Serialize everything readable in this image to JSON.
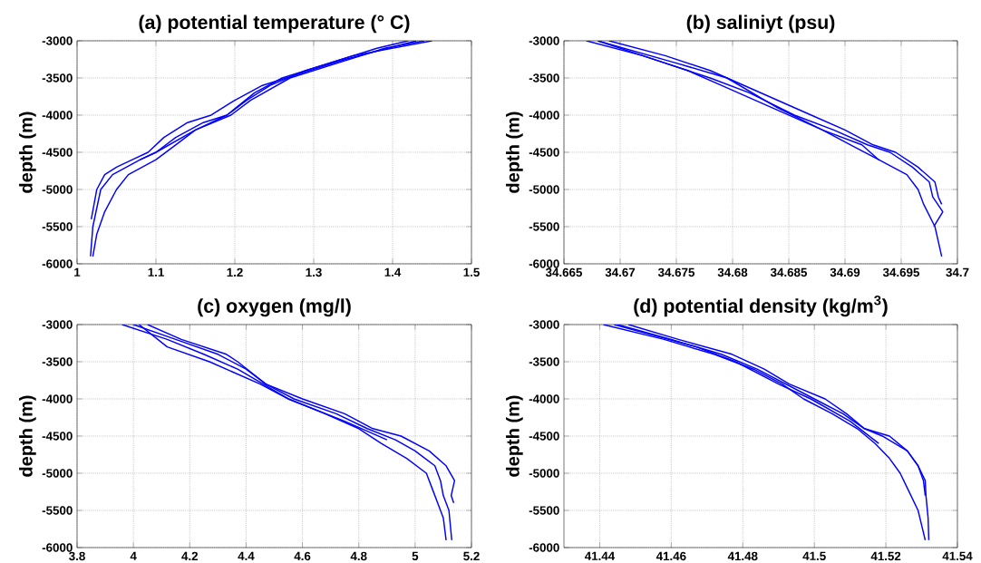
{
  "chart_data": [
    {
      "type": "line",
      "title": "(a) potential temperature (° C)",
      "ylabel": "depth (m)",
      "xlim": [
        1,
        1.5
      ],
      "ylim": [
        -6000,
        -3000
      ],
      "xticks": [
        1,
        1.1,
        1.2,
        1.3,
        1.4,
        1.5
      ],
      "yticks": [
        -6000,
        -5500,
        -5000,
        -4500,
        -4000,
        -3500,
        -3000
      ],
      "grid": true,
      "line_style": "solid",
      "series": [
        {
          "color": "#0000ff",
          "x": [
            1.02,
            1.025,
            1.035,
            1.05,
            1.065,
            1.1,
            1.125,
            1.15,
            1.19,
            1.215,
            1.245,
            1.29,
            1.35,
            1.45
          ],
          "values": [
            -5900,
            -5600,
            -5300,
            -5000,
            -4800,
            -4600,
            -4400,
            -4200,
            -4000,
            -3800,
            -3600,
            -3400,
            -3200,
            -3000
          ]
        },
        {
          "color": "#0000ff",
          "x": [
            1.017,
            1.02,
            1.03,
            1.045,
            1.08,
            1.1,
            1.125,
            1.16,
            1.19,
            1.225,
            1.26,
            1.32,
            1.38,
            1.42
          ],
          "values": [
            -5900,
            -5500,
            -5000,
            -4800,
            -4600,
            -4500,
            -4300,
            -4100,
            -4000,
            -3700,
            -3500,
            -3300,
            -3100,
            -3000
          ]
        },
        {
          "color": "#0000ff",
          "x": [
            1.018,
            1.025,
            1.035,
            1.05,
            1.07,
            1.09,
            1.11,
            1.14,
            1.17,
            1.2,
            1.235,
            1.28,
            1.34,
            1.43
          ],
          "values": [
            -5400,
            -5000,
            -4800,
            -4700,
            -4600,
            -4500,
            -4300,
            -4100,
            -4000,
            -3800,
            -3600,
            -3450,
            -3250,
            -3000
          ]
        },
        {
          "color": "#0000ff",
          "x": [
            1.08,
            1.1,
            1.15,
            1.195,
            1.22,
            1.27,
            1.33,
            1.39,
            1.44
          ],
          "values": [
            -4600,
            -4500,
            -4200,
            -4000,
            -3800,
            -3500,
            -3300,
            -3100,
            -3000
          ]
        }
      ]
    },
    {
      "type": "line",
      "title": "(b) saliniyt (psu)",
      "ylabel": "depth (m)",
      "xlim": [
        34.665,
        34.7
      ],
      "ylim": [
        -6000,
        -3000
      ],
      "xticks": [
        34.665,
        34.67,
        34.675,
        34.68,
        34.685,
        34.69,
        34.695,
        34.7
      ],
      "yticks": [
        -6000,
        -5500,
        -5000,
        -4500,
        -4000,
        -3500,
        -3000
      ],
      "grid": true,
      "line_style": "solid",
      "series": [
        {
          "color": "#0000ff",
          "x": [
            34.667,
            34.672,
            34.676,
            34.679,
            34.682,
            34.685,
            34.688,
            34.6905,
            34.693,
            34.6955,
            34.6965,
            34.697,
            34.698,
            34.6983,
            34.6986
          ],
          "values": [
            -3000,
            -3200,
            -3400,
            -3600,
            -3800,
            -4000,
            -4200,
            -4400,
            -4600,
            -4800,
            -5000,
            -5200,
            -5500,
            -5700,
            -5900
          ]
        },
        {
          "color": "#0000ff",
          "x": [
            34.668,
            34.674,
            34.678,
            34.6815,
            34.6855,
            34.689,
            34.692,
            34.694,
            34.696,
            34.6975,
            34.6978,
            34.6987,
            34.6979
          ],
          "values": [
            -3000,
            -3300,
            -3500,
            -3700,
            -4000,
            -4200,
            -4400,
            -4500,
            -4700,
            -4900,
            -5100,
            -5300,
            -5500
          ]
        },
        {
          "color": "#0000ff",
          "x": [
            34.669,
            34.674,
            34.678,
            34.681,
            34.684,
            34.687,
            34.69,
            34.6925,
            34.6945,
            34.6965,
            34.698,
            34.6983,
            34.6986
          ],
          "values": [
            -3000,
            -3200,
            -3400,
            -3600,
            -3800,
            -4000,
            -4200,
            -4400,
            -4500,
            -4700,
            -4900,
            -5100,
            -5200
          ]
        },
        {
          "color": "#0000ff",
          "x": [
            34.668,
            34.675,
            34.6795,
            34.684,
            34.688,
            34.6915,
            34.693
          ],
          "values": [
            -3000,
            -3300,
            -3500,
            -3900,
            -4200,
            -4400,
            -4600
          ]
        }
      ]
    },
    {
      "type": "line",
      "title": "(c) oxygen (mg/l)",
      "ylabel": "depth (m)",
      "xlim": [
        3.8,
        5.2
      ],
      "ylim": [
        -6000,
        -3000
      ],
      "xticks": [
        3.8,
        4,
        4.2,
        4.4,
        4.6,
        4.8,
        5,
        5.2
      ],
      "yticks": [
        -6000,
        -5500,
        -5000,
        -4500,
        -4000,
        -3500,
        -3000
      ],
      "grid": true,
      "line_style": "solid",
      "series": [
        {
          "color": "#0000ff",
          "x": [
            3.96,
            4.12,
            4.25,
            4.37,
            4.46,
            4.55,
            4.68,
            4.8,
            4.88,
            4.97,
            5.04,
            5.06,
            5.08,
            5.1,
            5.11
          ],
          "values": [
            -3000,
            -3200,
            -3400,
            -3600,
            -3800,
            -4000,
            -4200,
            -4400,
            -4600,
            -4800,
            -5000,
            -5200,
            -5400,
            -5600,
            -5900
          ]
        },
        {
          "color": "#0000ff",
          "x": [
            4.0,
            4.15,
            4.3,
            4.4,
            4.47,
            4.57,
            4.72,
            4.83,
            4.93,
            5.0,
            5.07,
            5.09,
            5.1,
            5.12,
            5.13
          ],
          "values": [
            -3000,
            -3200,
            -3400,
            -3600,
            -3800,
            -4000,
            -4200,
            -4400,
            -4550,
            -4700,
            -4900,
            -5100,
            -5300,
            -5500,
            -5900
          ]
        },
        {
          "color": "#0000ff",
          "x": [
            4.05,
            4.17,
            4.33,
            4.37,
            4.47,
            4.6,
            4.75,
            4.85,
            4.95,
            5.05,
            5.11,
            5.14,
            5.128,
            5.137
          ],
          "values": [
            -3000,
            -3200,
            -3400,
            -3500,
            -3800,
            -4000,
            -4200,
            -4400,
            -4500,
            -4700,
            -4900,
            -5100,
            -5300,
            -5400
          ]
        },
        {
          "color": "#0000ff",
          "x": [
            4.02,
            4.12,
            4.27,
            4.45,
            4.55,
            4.75,
            4.9
          ],
          "values": [
            -3000,
            -3300,
            -3500,
            -3800,
            -4000,
            -4300,
            -4550
          ]
        }
      ]
    },
    {
      "type": "line",
      "title": "(d) potential density (kg/m$^{3}$)",
      "ylabel": "depth (m)",
      "xlim": [
        41.43,
        41.54
      ],
      "ylim": [
        -6000,
        -3000
      ],
      "xticks": [
        41.44,
        41.46,
        41.48,
        41.5,
        41.52,
        41.54
      ],
      "yticks": [
        -6000,
        -5500,
        -5000,
        -4500,
        -4000,
        -3500,
        -3000
      ],
      "grid": true,
      "line_style": "solid",
      "series": [
        {
          "color": "#0000ff",
          "x": [
            41.441,
            41.458,
            41.472,
            41.483,
            41.491,
            41.497,
            41.505,
            41.512,
            41.517,
            41.521,
            41.524,
            41.526,
            41.529,
            41.53,
            41.531
          ],
          "values": [
            -3000,
            -3200,
            -3400,
            -3600,
            -3800,
            -4000,
            -4200,
            -4400,
            -4600,
            -4800,
            -5000,
            -5200,
            -5500,
            -5700,
            -5900
          ]
        },
        {
          "color": "#0000ff",
          "x": [
            41.445,
            41.46,
            41.474,
            41.484,
            41.492,
            41.5,
            41.508,
            41.514,
            41.519,
            41.526,
            41.529,
            41.531,
            41.5312,
            41.5318,
            41.532
          ],
          "values": [
            -3000,
            -3200,
            -3400,
            -3600,
            -3800,
            -4000,
            -4200,
            -4400,
            -4500,
            -4700,
            -4900,
            -5100,
            -5300,
            -5600,
            -5900
          ]
        },
        {
          "color": "#0000ff",
          "x": [
            41.448,
            41.462,
            41.477,
            41.486,
            41.493,
            41.503,
            41.509,
            41.514,
            41.521,
            41.526,
            41.529,
            41.5305,
            41.531
          ],
          "values": [
            -3000,
            -3200,
            -3400,
            -3600,
            -3800,
            -4000,
            -4200,
            -4400,
            -4500,
            -4700,
            -4900,
            -5100,
            -5300
          ]
        },
        {
          "color": "#0000ff",
          "x": [
            41.444,
            41.467,
            41.478,
            41.49,
            41.499,
            41.51,
            41.518
          ],
          "values": [
            -3000,
            -3300,
            -3500,
            -3800,
            -4000,
            -4300,
            -4600
          ]
        }
      ]
    }
  ]
}
